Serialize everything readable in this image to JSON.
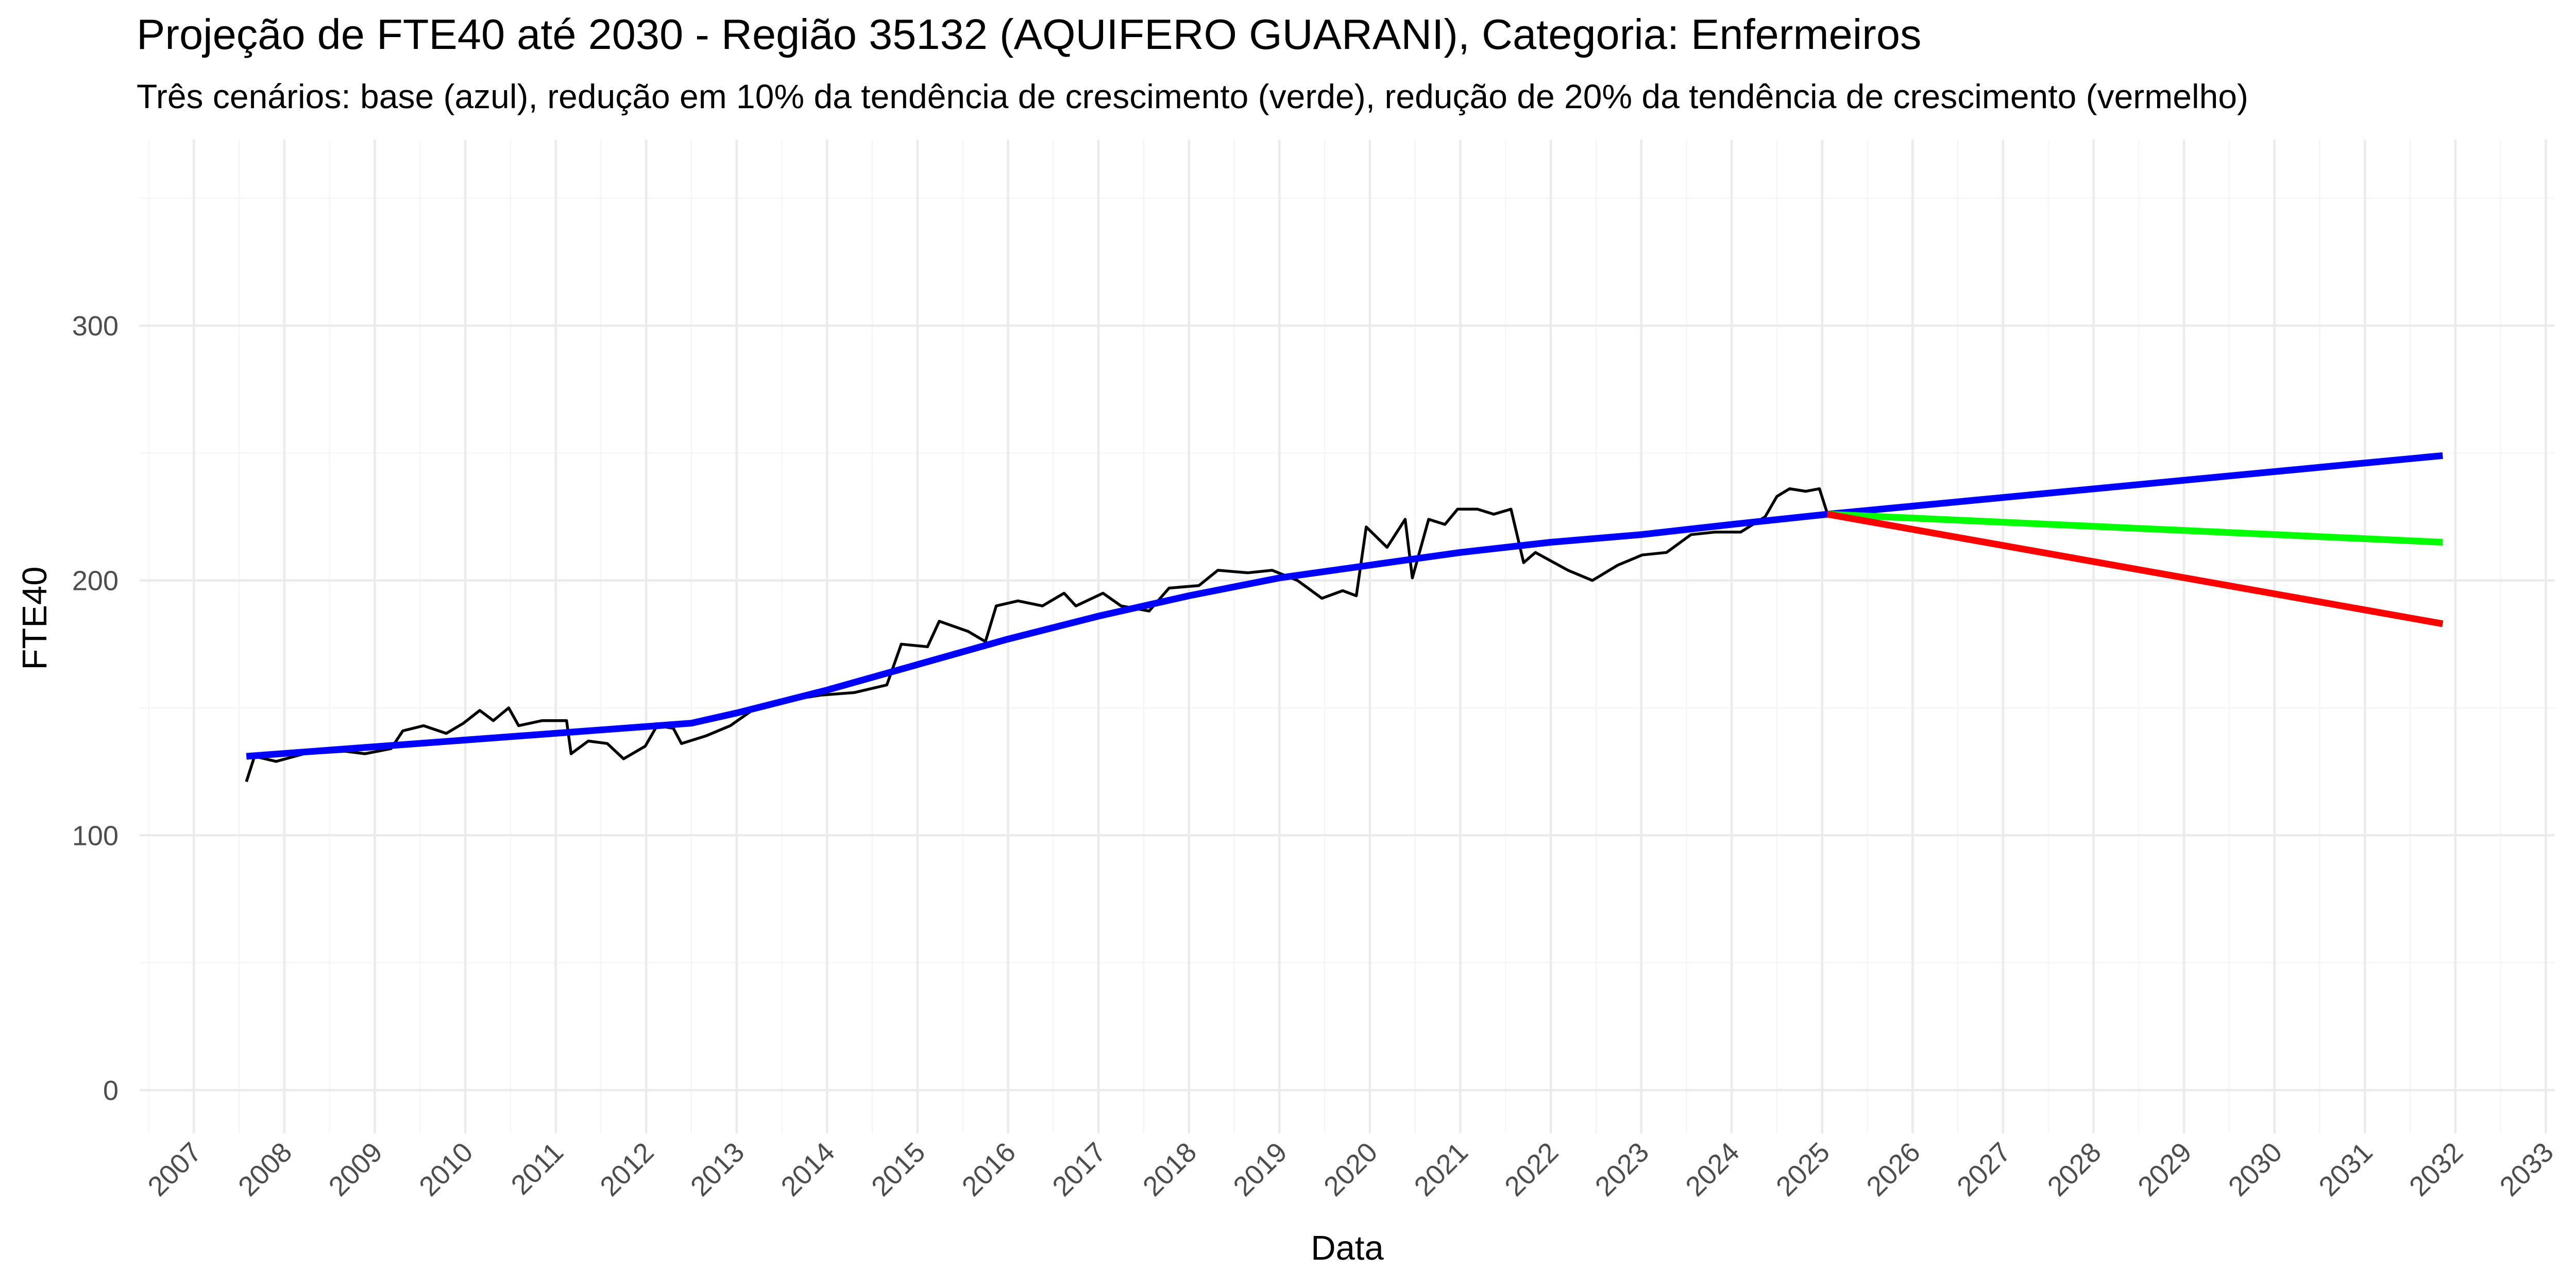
{
  "chart_data": {
    "type": "line",
    "title": "Projeção de FTE40 até 2030 - Região 35132 (AQUIFERO GUARANI), Categoria: Enfermeiros",
    "subtitle": "Três cenários: base (azul), redução em 10% da tendência de crescimento (verde), redução de 20% da tendência de crescimento (vermelho)",
    "x_label": "Data",
    "y_label": "FTE40",
    "xlim": [
      2006.4,
      2033.1
    ],
    "ylim": [
      -17,
      373
    ],
    "xticks": [
      2007,
      2008,
      2009,
      2010,
      2011,
      2012,
      2013,
      2014,
      2015,
      2016,
      2017,
      2018,
      2019,
      2020,
      2021,
      2022,
      2023,
      2024,
      2025,
      2026,
      2027,
      2028,
      2029,
      2030,
      2031,
      2032,
      2033
    ],
    "yticks": [
      0,
      100,
      200,
      300
    ],
    "grid": true,
    "series": [
      {
        "color": "#000000",
        "width": "thin",
        "x": [
          2007.58,
          2007.67,
          2007.91,
          2008.22,
          2008.67,
          2008.89,
          2009.18,
          2009.31,
          2009.54,
          2009.79,
          2009.98,
          2010.16,
          2010.31,
          2010.48,
          2010.59,
          2010.85,
          2011.12,
          2011.17,
          2011.36,
          2011.57,
          2011.75,
          2011.99,
          2012.12,
          2012.3,
          2012.39,
          2012.66,
          2012.93,
          2013.21,
          2013.57,
          2013.93,
          2014.3,
          2014.66,
          2014.82,
          2015.11,
          2015.24,
          2015.56,
          2015.75,
          2015.87,
          2016.11,
          2016.38,
          2016.62,
          2016.75,
          2017.05,
          2017.25,
          2017.56,
          2017.78,
          2018.11,
          2018.32,
          2018.65,
          2018.92,
          2019.2,
          2019.47,
          2019.7,
          2019.85,
          2019.96,
          2020.19,
          2020.39,
          2020.47,
          2020.65,
          2020.83,
          2020.97,
          2021.19,
          2021.37,
          2021.56,
          2021.7,
          2021.83,
          2022.19,
          2022.46,
          2022.74,
          2023.01,
          2023.28,
          2023.55,
          2023.82,
          2024.1,
          2024.37,
          2024.5,
          2024.64,
          2024.82,
          2024.97,
          2025.06
        ],
        "values": [
          121,
          131,
          129,
          132,
          133,
          132,
          134,
          141,
          143,
          140,
          144,
          149,
          145,
          150,
          143,
          145,
          145,
          132,
          137,
          136,
          130,
          135,
          143,
          142,
          136,
          139,
          143,
          150,
          153,
          155,
          156,
          159,
          175,
          174,
          184,
          180,
          176,
          190,
          192,
          190,
          195,
          190,
          195,
          190,
          188,
          197,
          198,
          204,
          203,
          204,
          200,
          193,
          196,
          194,
          221,
          213,
          224,
          201,
          224,
          222,
          228,
          228,
          226,
          228,
          207,
          211,
          204,
          200,
          206,
          210,
          211,
          218,
          219,
          219,
          225,
          233,
          236,
          235,
          236,
          226
        ]
      },
      {
        "color": "#0000ff",
        "width": "thick",
        "x": [
          2007.58,
          2012.5,
          2013.0,
          2014.0,
          2015.0,
          2016.0,
          2017.0,
          2018.0,
          2019.0,
          2020.0,
          2021.0,
          2022.0,
          2023.0,
          2024.0,
          2025.06,
          2031.86
        ],
        "values": [
          131,
          144,
          148,
          157,
          167,
          177,
          186,
          194,
          201,
          206,
          211,
          215,
          218,
          222,
          226,
          249
        ]
      },
      {
        "color": "#00ff00",
        "width": "thick",
        "x": [
          2025.06,
          2031.86
        ],
        "values": [
          226,
          215
        ]
      },
      {
        "color": "#ff0000",
        "width": "thick",
        "x": [
          2025.06,
          2031.86
        ],
        "values": [
          226,
          183
        ]
      }
    ]
  }
}
